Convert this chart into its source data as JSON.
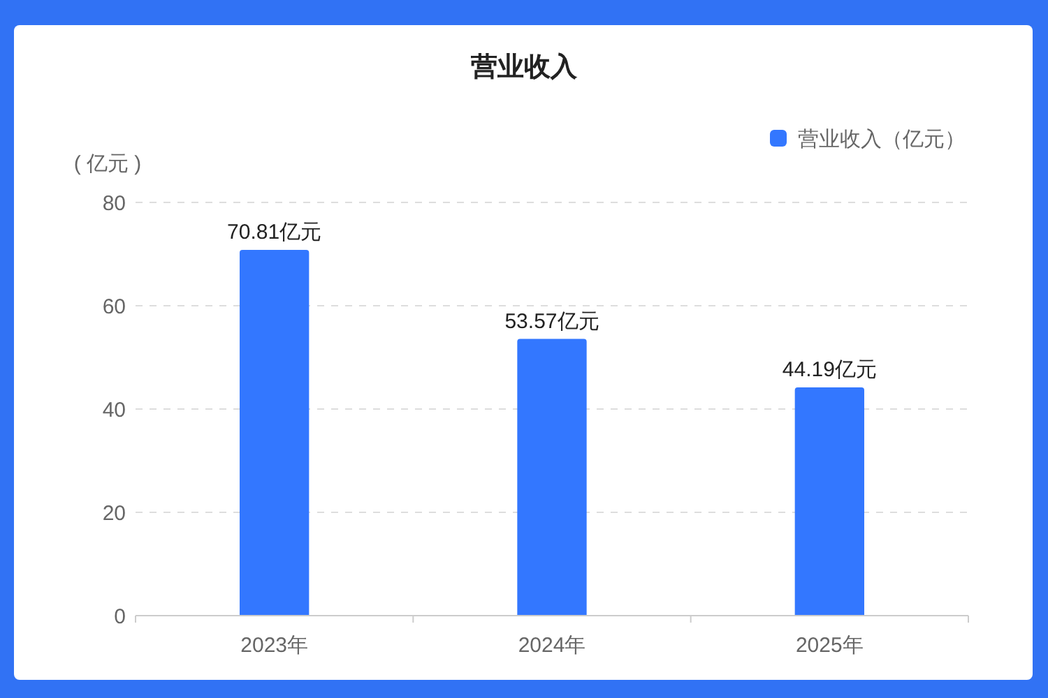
{
  "chart_data": {
    "type": "bar",
    "title": "营业收入",
    "ylabel": "( 亿元 )",
    "categories": [
      "2023年",
      "2024年",
      "2025年"
    ],
    "series": [
      {
        "name": "营业收入（亿元）",
        "color": "#3377ff",
        "values": [
          70.81,
          53.57,
          44.19
        ],
        "value_labels": [
          "70.81亿元",
          "53.57亿元",
          "44.19亿元"
        ]
      }
    ],
    "ylim": [
      0,
      80
    ],
    "yticks": [
      0,
      20,
      40,
      60,
      80
    ],
    "grid": "y",
    "legend": "top right"
  }
}
